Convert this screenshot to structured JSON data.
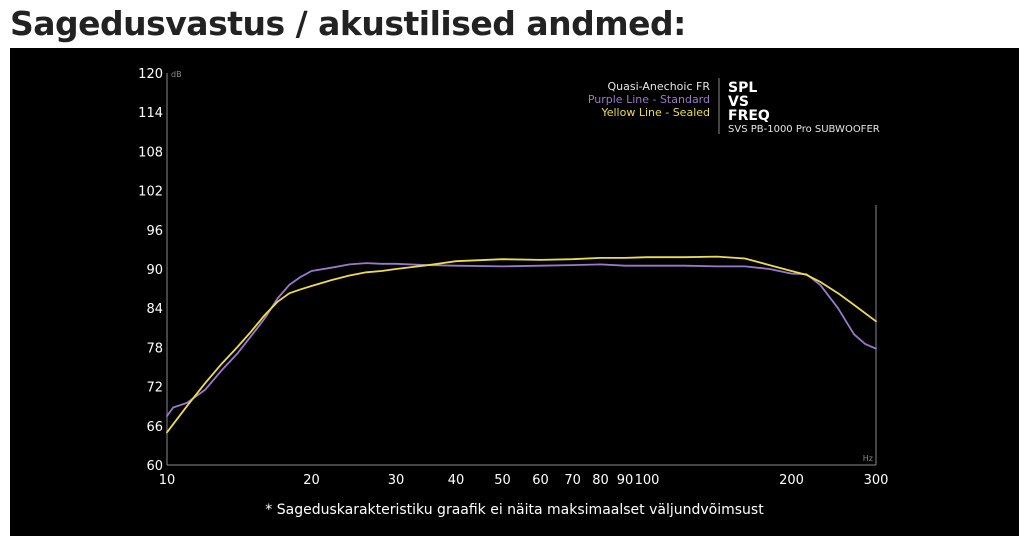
{
  "page": {
    "title": "Sagedusvastus / akustilised andmed:",
    "footnote": "* Sageduskarakteristiku graafik ei näita maksimaalset väljundvõimsust"
  },
  "chart_data": {
    "type": "line",
    "x_scale": "log",
    "grid": false,
    "xlim": [
      10,
      300
    ],
    "ylim": [
      60,
      120
    ],
    "x_unit": "Hz",
    "y_unit": "dB",
    "x_ticks": [
      10,
      20,
      30,
      40,
      50,
      60,
      70,
      80,
      90,
      100,
      200,
      300
    ],
    "y_ticks": [
      60,
      66,
      72,
      78,
      84,
      90,
      96,
      102,
      108,
      114,
      120
    ],
    "legend": {
      "placement": "top-right",
      "heading": "Quasi-Anechoic FR",
      "entries": [
        "Purple Line - Standard",
        "Yellow Line - Sealed"
      ]
    },
    "badge": {
      "words": [
        "SPL",
        "VS",
        "FREQ"
      ],
      "product": "SVS PB-1000 Pro SUBWOOFER"
    },
    "colors": {
      "background": "#000000",
      "axis": "#8a8a8a",
      "heading": "#e6e6e6",
      "purple": "#9b79c9",
      "yellow": "#eddc4e"
    },
    "series": [
      {
        "color": "#9b79c9",
        "x": [
          10,
          10.3,
          11,
          12,
          13,
          14,
          15,
          16,
          17,
          18,
          19,
          20,
          22,
          24,
          26,
          28,
          30,
          35,
          40,
          50,
          60,
          70,
          80,
          90,
          100,
          120,
          140,
          160,
          180,
          200,
          215,
          230,
          250,
          270,
          285,
          300
        ],
        "y": [
          67.5,
          68.8,
          69.5,
          71.5,
          74.5,
          77.0,
          79.8,
          82.5,
          85.5,
          87.6,
          88.8,
          89.7,
          90.2,
          90.7,
          90.9,
          90.8,
          90.8,
          90.6,
          90.5,
          90.4,
          90.5,
          90.6,
          90.7,
          90.5,
          90.5,
          90.5,
          90.4,
          90.4,
          90.0,
          89.3,
          89.2,
          87.5,
          84.0,
          80.0,
          78.5,
          77.8
        ]
      },
      {
        "color": "#eddc4e",
        "x": [
          10,
          11,
          12,
          13,
          14,
          15,
          16,
          17,
          18,
          19,
          20,
          22,
          24,
          26,
          28,
          30,
          35,
          40,
          50,
          60,
          70,
          80,
          90,
          100,
          120,
          140,
          160,
          180,
          200,
          215,
          230,
          250,
          270,
          300
        ],
        "y": [
          65.0,
          69.0,
          72.5,
          75.5,
          78.0,
          80.5,
          83.0,
          85.0,
          86.3,
          86.9,
          87.4,
          88.3,
          89.0,
          89.5,
          89.7,
          90.0,
          90.6,
          91.2,
          91.5,
          91.4,
          91.5,
          91.7,
          91.7,
          91.8,
          91.8,
          91.9,
          91.6,
          90.6,
          89.7,
          89.1,
          88.0,
          86.3,
          84.5,
          82.0
        ]
      }
    ]
  }
}
